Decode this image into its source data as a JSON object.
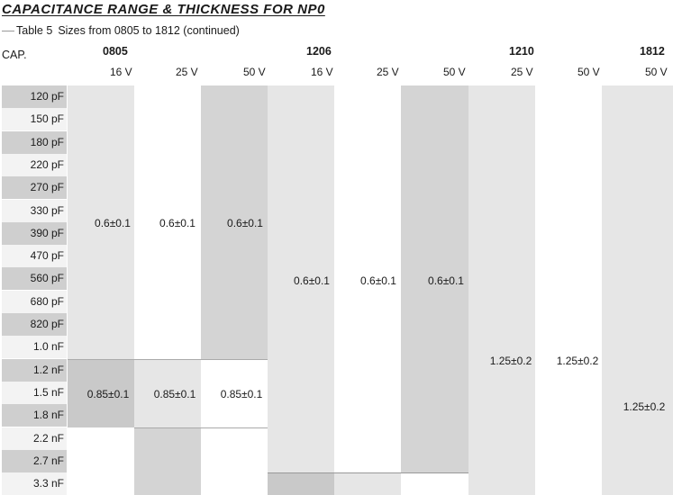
{
  "title": "CAPACITANCE RANGE & THICKNESS FOR NP0",
  "caption": {
    "label": "Table 5",
    "text": "Sizes from 0805 to 1812 (continued)"
  },
  "header": {
    "cap_label": "CAP.",
    "sizes": [
      "0805",
      "1206",
      "1210",
      "1812"
    ],
    "voltages": [
      "16 V",
      "25 V",
      "50 V",
      "16 V",
      "25 V",
      "50 V",
      "25 V",
      "50 V",
      "50 V"
    ]
  },
  "rows": [
    "120 pF",
    "150 pF",
    "180 pF",
    "220 pF",
    "270 pF",
    "330 pF",
    "390 pF",
    "470 pF",
    "560 pF",
    "680 pF",
    "820 pF",
    "1.0 nF",
    "1.2 nF",
    "1.5 nF",
    "1.8 nF",
    "2.2 nF",
    "2.7 nF",
    "3.3 nF"
  ],
  "values": {
    "c0805_16v_a": "0.6±0.1",
    "c0805_25v_a": "0.6±0.1",
    "c0805_50v_a": "0.6±0.1",
    "c0805_16v_b": "0.85±0.1",
    "c0805_25v_b": "0.85±0.1",
    "c0805_50v_b": "0.85±0.1",
    "c1206_16v": "0.6±0.1",
    "c1206_25v": "0.6±0.1",
    "c1206_50v": "0.6±0.1",
    "c1210_25v": "1.25±0.2",
    "c1210_50v": "1.25±0.2",
    "c1812_50v": "1.25±0.2"
  }
}
